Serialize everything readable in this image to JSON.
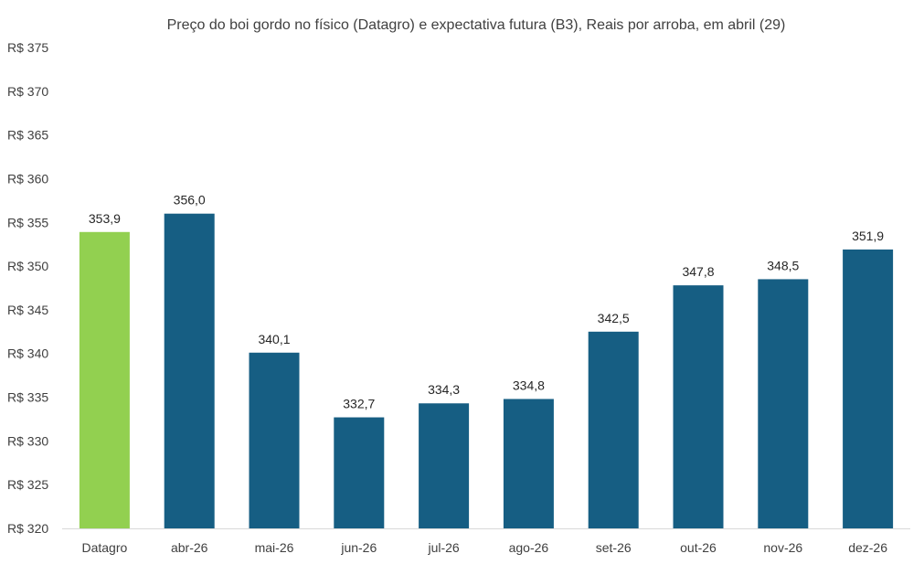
{
  "chart_data": {
    "type": "bar",
    "title": "Preço do boi gordo no físico (Datagro)  e expectativa futura (B3), Reais por arroba, em abril (29)",
    "xlabel": "",
    "ylabel": "",
    "ylim": [
      320,
      375
    ],
    "y_tick_step": 5,
    "y_tick_prefix": "R$ ",
    "grid": false,
    "legend": "none",
    "categories": [
      "Datagro",
      "abr-26",
      "mai-26",
      "jun-26",
      "jul-26",
      "ago-26",
      "set-26",
      "out-26",
      "nov-26",
      "dez-26"
    ],
    "values": [
      353.9,
      356.0,
      340.1,
      332.7,
      334.3,
      334.8,
      342.5,
      347.8,
      348.5,
      351.9
    ],
    "value_labels": [
      "353,9",
      "356,0",
      "340,1",
      "332,7",
      "334,3",
      "334,8",
      "342,5",
      "347,8",
      "348,5",
      "351,9"
    ],
    "colors": {
      "highlight": "#92d050",
      "default": "#165e83",
      "axis": "#d9d9d9"
    },
    "highlight_categories": [
      "Datagro"
    ]
  }
}
